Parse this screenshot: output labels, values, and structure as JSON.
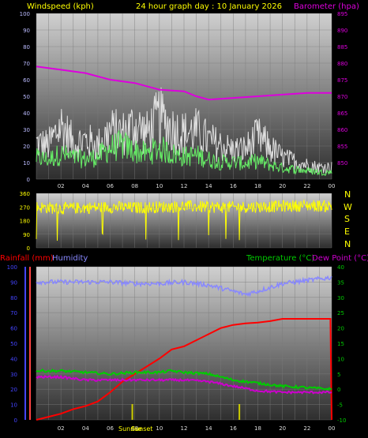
{
  "header": {
    "windspeed_label": "Windspeed (kph)",
    "title": "24 hour graph day : 10 January 2026",
    "barometer_label": "Barometer (hpa)"
  },
  "bottom_header": {
    "rainfall_label": "Rainfall (mm)",
    "humidity_label": "Humidity",
    "temperature_label": "Temperature (°C)",
    "dewpoint_label": "Dew Point (°C)"
  },
  "sun_labels": {
    "sunrise": "Sunrise",
    "sunset": "Sunset"
  },
  "compass": [
    "N",
    "W",
    "S",
    "E",
    "N"
  ],
  "colors": {
    "wind_gust": "#e0e0e0",
    "wind_avg": "#66ee66",
    "barometer": "#dd00dd",
    "direction": "#ffff00",
    "rainfall": "#ff0000",
    "humidity": "#8888ff",
    "temperature": "#00cc00",
    "dewpoint": "#cc00cc",
    "header_yellow": "#ffff00",
    "tick_left": "#4444ff",
    "tick_right": "#00cc00"
  },
  "chart_data": [
    {
      "type": "line",
      "title": "24 hour graph day : 10 January 2026",
      "xlabel": "",
      "x_ticks": [
        "02",
        "04",
        "06",
        "08",
        "10",
        "12",
        "14",
        "16",
        "18",
        "20",
        "22",
        "00"
      ],
      "ylabel": "Windspeed (kph)",
      "ylim": [
        0,
        100
      ],
      "y_ticks": [
        0,
        10,
        20,
        30,
        40,
        50,
        60,
        70,
        80,
        90,
        100
      ],
      "y2label": "Barometer (hpa)",
      "y2lim": [
        845,
        895
      ],
      "y2_ticks": [
        850,
        855,
        860,
        865,
        870,
        875,
        880,
        885,
        890,
        895
      ],
      "grid": true,
      "series": [
        {
          "name": "Windspeed (kph)",
          "axis": "left",
          "x": [
            0,
            1,
            2,
            3,
            4,
            5,
            6,
            7,
            8,
            9,
            10,
            11,
            12,
            13,
            14,
            15,
            16,
            17,
            18,
            19,
            20,
            21,
            22,
            23,
            24
          ],
          "values": [
            30,
            28,
            45,
            30,
            32,
            28,
            40,
            38,
            45,
            38,
            52,
            42,
            38,
            40,
            32,
            28,
            24,
            25,
            35,
            26,
            18,
            15,
            12,
            10,
            10
          ]
        },
        {
          "axis": "left",
          "x": [
            0,
            1,
            2,
            3,
            4,
            5,
            6,
            7,
            8,
            9,
            10,
            11,
            12,
            13,
            14,
            15,
            16,
            17,
            18,
            19,
            20,
            21,
            22,
            23,
            24
          ],
          "values": [
            15,
            14,
            18,
            15,
            14,
            16,
            22,
            24,
            20,
            18,
            22,
            18,
            16,
            17,
            14,
            12,
            12,
            11,
            13,
            10,
            8,
            7,
            6,
            5,
            5
          ]
        },
        {
          "name": "Barometer (hpa)",
          "axis": "right",
          "x": [
            0,
            2,
            4,
            6,
            8,
            10,
            12,
            13,
            14,
            16,
            18,
            20,
            22,
            24
          ],
          "values": [
            879,
            878,
            877,
            875,
            874,
            872,
            871.5,
            870,
            869,
            869.5,
            870,
            870.5,
            871,
            871
          ]
        }
      ]
    },
    {
      "type": "line",
      "title": "",
      "ylabel": "",
      "ylim": [
        0,
        360
      ],
      "y_ticks": [
        0,
        90,
        180,
        270,
        360
      ],
      "x_ticks": [
        "02",
        "04",
        "06",
        "08",
        "10",
        "12",
        "14",
        "16",
        "18",
        "20",
        "22",
        "00"
      ],
      "series": [
        {
          "x": [
            0,
            2,
            4,
            6,
            8,
            10,
            12,
            14,
            16,
            18,
            20,
            22,
            24
          ],
          "values": [
            270,
            260,
            265,
            270,
            265,
            270,
            275,
            270,
            268,
            272,
            275,
            280,
            275
          ]
        }
      ]
    },
    {
      "type": "line",
      "title": "",
      "ylabel": "Rainfall (mm)",
      "ylim": [
        0,
        100
      ],
      "y_ticks": [
        0,
        10,
        20,
        30,
        40,
        50,
        60,
        70,
        80,
        90,
        100
      ],
      "y2label": "Temperature (°C)",
      "y2lim": [
        -10,
        40
      ],
      "y2_ticks": [
        -10,
        -5,
        0,
        5,
        10,
        15,
        20,
        25,
        30,
        35,
        40
      ],
      "x_ticks": [
        "02",
        "04",
        "06",
        "08",
        "10",
        "12",
        "14",
        "16",
        "18",
        "20",
        "22",
        "00"
      ],
      "series": [
        {
          "name": "Rainfall (mm)",
          "axis": "left",
          "x": [
            0,
            1,
            2,
            3,
            4,
            5,
            6,
            7,
            8,
            9,
            10,
            11,
            12,
            13,
            14,
            15,
            16,
            17,
            18,
            19,
            20,
            21,
            22,
            23,
            23.9,
            24
          ],
          "values": [
            0,
            2,
            4,
            7,
            9,
            12,
            18,
            25,
            30,
            35,
            40,
            46,
            48,
            52,
            56,
            60,
            62,
            63,
            63.5,
            64.5,
            66,
            66,
            66,
            66,
            66,
            0
          ]
        },
        {
          "name": "Humidity",
          "axis": "left",
          "x": [
            0,
            2,
            4,
            6,
            8,
            10,
            12,
            14,
            16,
            17,
            18,
            20,
            22,
            24
          ],
          "values": [
            90,
            90,
            90,
            90,
            89,
            89,
            90,
            88,
            84,
            82,
            84,
            89,
            91,
            93
          ]
        },
        {
          "name": "Temperature (°C)",
          "axis": "right",
          "x": [
            0,
            2,
            4,
            6,
            8,
            10,
            11,
            12,
            14,
            16,
            18,
            20,
            22,
            24
          ],
          "values": [
            6,
            6,
            5.5,
            5,
            5.5,
            5.5,
            6,
            5.5,
            5,
            3,
            2,
            1,
            0.5,
            0
          ]
        },
        {
          "name": "Dew Point (°C)",
          "axis": "right",
          "x": [
            0,
            2,
            4,
            6,
            8,
            10,
            12,
            14,
            16,
            18,
            20,
            22,
            24
          ],
          "values": [
            4,
            4,
            3,
            3,
            3,
            3,
            3,
            2.5,
            1,
            -0.5,
            -1,
            -1,
            -1
          ]
        }
      ]
    }
  ]
}
